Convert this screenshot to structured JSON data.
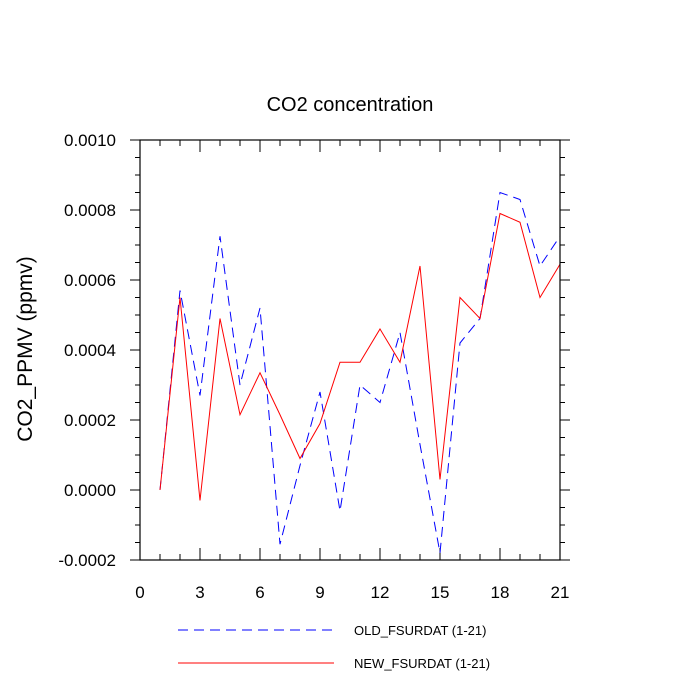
{
  "chart_data": {
    "type": "line",
    "title": "CO2 concentration",
    "xlabel": "",
    "ylabel": "CO2_PPMV  (ppmv)",
    "xlim": [
      0,
      21
    ],
    "ylim": [
      -0.0002,
      0.001
    ],
    "x_ticks": [
      0,
      3,
      6,
      9,
      12,
      15,
      18,
      21
    ],
    "x_tick_labels": [
      "0",
      "3",
      "6",
      "9",
      "12",
      "15",
      "18",
      "21"
    ],
    "y_ticks": [
      -0.0002,
      0,
      0.0002,
      0.0004,
      0.0006,
      0.0008,
      0.001
    ],
    "y_tick_labels": [
      "-0.0002",
      "0.0000",
      "0.0002",
      "0.0004",
      "0.0006",
      "0.0008",
      "0.0010"
    ],
    "grid": false,
    "legend_position": "bottom",
    "x": [
      1,
      2,
      3,
      4,
      5,
      6,
      7,
      8,
      9,
      10,
      11,
      12,
      13,
      14,
      15,
      16,
      17,
      18,
      19,
      20,
      21
    ],
    "series": [
      {
        "name": "OLD_FSURDAT (1-21)",
        "color": "#0000ff",
        "dash": "dashed",
        "values": [
          0.0,
          0.00057,
          0.00027,
          0.000725,
          0.0003,
          0.00052,
          -0.000155,
          7e-05,
          0.00028,
          -6e-05,
          0.0003,
          0.00025,
          0.00045,
          0.00013,
          -0.00018,
          0.00042,
          0.00049,
          0.00085,
          0.00083,
          0.00064,
          0.000725
        ]
      },
      {
        "name": "NEW_FSURDAT (1-21)",
        "color": "#ff0000",
        "dash": "solid",
        "values": [
          0.0,
          0.00055,
          -3e-05,
          0.00049,
          0.000215,
          0.000335,
          0.000215,
          9e-05,
          0.00019,
          0.000365,
          0.000365,
          0.00046,
          0.000365,
          0.00064,
          3e-05,
          0.00055,
          0.00049,
          0.00079,
          0.000765,
          0.00055,
          0.000645
        ]
      }
    ]
  }
}
